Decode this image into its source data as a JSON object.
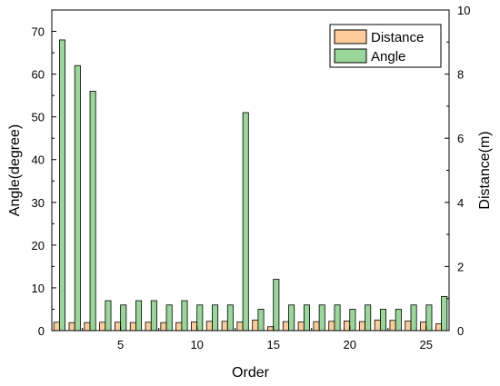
{
  "chart_data": {
    "type": "bar",
    "xlabel": "Order",
    "ylabel_left": "Angle(degree)",
    "ylabel_right": "Distance(m)",
    "xlim": [
      0.5,
      26.5
    ],
    "ylim_left": [
      0,
      75
    ],
    "ylim_right": [
      0,
      10
    ],
    "xticks": [
      5,
      10,
      15,
      20,
      25
    ],
    "yticks_left": [
      0,
      10,
      20,
      30,
      40,
      50,
      60,
      70
    ],
    "yticks_right": [
      0,
      2,
      4,
      6,
      8,
      10
    ],
    "grid": false,
    "legend_position": "top-right",
    "x": [
      1,
      2,
      3,
      4,
      5,
      6,
      7,
      8,
      9,
      10,
      11,
      12,
      13,
      14,
      15,
      16,
      17,
      18,
      19,
      20,
      21,
      22,
      23,
      24,
      25,
      26
    ],
    "series": [
      {
        "name": "Distance",
        "axis": "right",
        "color": "#FFCC99",
        "values": [
          0.26,
          0.25,
          0.25,
          0.26,
          0.26,
          0.25,
          0.26,
          0.25,
          0.25,
          0.27,
          0.29,
          0.29,
          0.27,
          0.33,
          0.12,
          0.28,
          0.27,
          0.28,
          0.29,
          0.3,
          0.28,
          0.33,
          0.32,
          0.3,
          0.27,
          0.21
        ]
      },
      {
        "name": "Angle",
        "axis": "left",
        "color": "#99D699",
        "values": [
          68,
          62,
          56,
          7,
          6,
          7,
          7,
          6,
          7,
          6,
          6,
          6,
          51,
          5,
          12,
          6,
          6,
          6,
          6,
          5,
          6,
          5,
          5,
          6,
          6,
          8
        ]
      }
    ]
  }
}
